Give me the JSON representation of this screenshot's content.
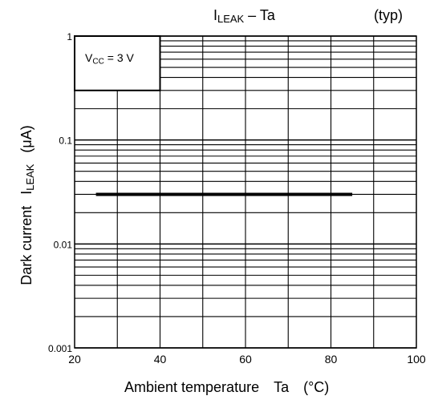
{
  "chart_data": {
    "type": "line",
    "title_main": "I",
    "title_sub": "LEAK",
    "title_suffix": " – Ta",
    "title_note": "(typ)",
    "xlabel_main": "Ambient temperature",
    "xlabel_symbol": "Ta",
    "xlabel_unit": "(°C)",
    "ylabel_main": "Dark current",
    "ylabel_symbol": "I",
    "ylabel_symbol_sub": "LEAK",
    "ylabel_unit": "(μA)",
    "condition_main": "V",
    "condition_sub": "CC",
    "condition_value": " = 3 V",
    "x_axis": {
      "min": 20,
      "max": 100,
      "ticks": [
        20,
        40,
        60,
        80,
        100
      ],
      "tick_labels": [
        "20",
        "40",
        "60",
        "80",
        "100"
      ]
    },
    "y_axis": {
      "scale": "log",
      "min": 0.001,
      "max": 1,
      "ticks": [
        0.001,
        0.01,
        0.1,
        1
      ],
      "tick_labels": [
        "0.001",
        "0.01",
        "0.1",
        "1"
      ]
    },
    "grid": true,
    "series": [
      {
        "x": [
          25,
          85
        ],
        "y": [
          0.03,
          0.03
        ]
      }
    ]
  }
}
